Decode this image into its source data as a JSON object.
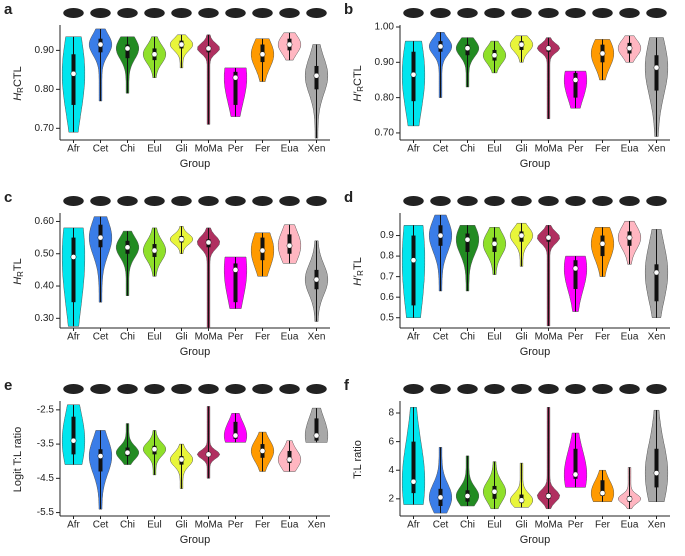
{
  "chart_data": [
    {
      "type": "violin",
      "panel": "a",
      "ylabel": {
        "main": "H",
        "sub": "R",
        "rest": "CTL"
      },
      "xlabel": "Group",
      "categories": [
        "Afr",
        "Cet",
        "Chi",
        "Eul",
        "Gli",
        "MoMa",
        "Per",
        "Fer",
        "Eua",
        "Xen"
      ],
      "colors": [
        "#00e5ee",
        "#3a7de8",
        "#228b22",
        "#8fe02a",
        "#e8f53a",
        "#b03060",
        "#ff00ff",
        "#ff9a00",
        "#ffb6c1",
        "#a8a8a8"
      ],
      "ylim": [
        0.67,
        0.96
      ],
      "yticks": [
        {
          "value": 0.7,
          "label": "0.70"
        },
        {
          "value": 0.8,
          "label": "0.80"
        },
        {
          "value": 0.9,
          "label": "0.90"
        }
      ],
      "stats": [
        {
          "min": 0.69,
          "q1": 0.76,
          "median": 0.84,
          "q3": 0.89,
          "max": 0.935
        },
        {
          "min": 0.77,
          "q1": 0.895,
          "median": 0.915,
          "q3": 0.93,
          "max": 0.955
        },
        {
          "min": 0.79,
          "q1": 0.88,
          "median": 0.905,
          "q3": 0.915,
          "max": 0.935
        },
        {
          "min": 0.83,
          "q1": 0.875,
          "median": 0.89,
          "q3": 0.905,
          "max": 0.935
        },
        {
          "min": 0.855,
          "q1": 0.905,
          "median": 0.915,
          "q3": 0.925,
          "max": 0.94
        },
        {
          "min": 0.71,
          "q1": 0.895,
          "median": 0.905,
          "q3": 0.91,
          "max": 0.94
        },
        {
          "min": 0.73,
          "q1": 0.76,
          "median": 0.83,
          "q3": 0.845,
          "max": 0.855
        },
        {
          "min": 0.82,
          "q1": 0.87,
          "median": 0.89,
          "q3": 0.915,
          "max": 0.93
        },
        {
          "min": 0.875,
          "q1": 0.9,
          "median": 0.915,
          "q3": 0.93,
          "max": 0.945
        },
        {
          "min": 0.675,
          "q1": 0.8,
          "median": 0.835,
          "q3": 0.86,
          "max": 0.915
        }
      ]
    },
    {
      "type": "violin",
      "panel": "b",
      "ylabel": {
        "main": "H′",
        "sub": "R",
        "rest": "CTL"
      },
      "xlabel": "Group",
      "categories": [
        "Afr",
        "Cet",
        "Chi",
        "Eul",
        "Gli",
        "MoMa",
        "Per",
        "Fer",
        "Eua",
        "Xen"
      ],
      "colors": [
        "#00e5ee",
        "#3a7de8",
        "#228b22",
        "#8fe02a",
        "#e8f53a",
        "#b03060",
        "#ff00ff",
        "#ff9a00",
        "#ffb6c1",
        "#a8a8a8"
      ],
      "ylim": [
        0.68,
        1.0
      ],
      "yticks": [
        {
          "value": 0.7,
          "label": "0.70"
        },
        {
          "value": 0.8,
          "label": "0.80"
        },
        {
          "value": 0.9,
          "label": "0.90"
        },
        {
          "value": 1.0,
          "label": "1.00"
        }
      ],
      "stats": [
        {
          "min": 0.72,
          "q1": 0.79,
          "median": 0.865,
          "q3": 0.93,
          "max": 0.96
        },
        {
          "min": 0.8,
          "q1": 0.93,
          "median": 0.945,
          "q3": 0.96,
          "max": 0.985
        },
        {
          "min": 0.83,
          "q1": 0.92,
          "median": 0.94,
          "q3": 0.95,
          "max": 0.97
        },
        {
          "min": 0.87,
          "q1": 0.905,
          "median": 0.92,
          "q3": 0.935,
          "max": 0.96
        },
        {
          "min": 0.9,
          "q1": 0.935,
          "median": 0.95,
          "q3": 0.96,
          "max": 0.975
        },
        {
          "min": 0.74,
          "q1": 0.93,
          "median": 0.94,
          "q3": 0.945,
          "max": 0.97
        },
        {
          "min": 0.77,
          "q1": 0.8,
          "median": 0.85,
          "q3": 0.87,
          "max": 0.875
        },
        {
          "min": 0.85,
          "q1": 0.9,
          "median": 0.925,
          "q3": 0.95,
          "max": 0.965
        },
        {
          "min": 0.9,
          "q1": 0.925,
          "median": 0.94,
          "q3": 0.955,
          "max": 0.975
        },
        {
          "min": 0.69,
          "q1": 0.82,
          "median": 0.885,
          "q3": 0.92,
          "max": 0.97
        }
      ]
    },
    {
      "type": "violin",
      "panel": "c",
      "ylabel": {
        "main": "H",
        "sub": "R",
        "rest": "TL"
      },
      "xlabel": "Group",
      "categories": [
        "Afr",
        "Cet",
        "Chi",
        "Eul",
        "Gli",
        "MoMa",
        "Per",
        "Fer",
        "Eua",
        "Xen"
      ],
      "colors": [
        "#00e5ee",
        "#3a7de8",
        "#228b22",
        "#8fe02a",
        "#e8f53a",
        "#b03060",
        "#ff00ff",
        "#ff9a00",
        "#ffb6c1",
        "#a8a8a8"
      ],
      "ylim": [
        0.27,
        0.62
      ],
      "yticks": [
        {
          "value": 0.3,
          "label": "0.30"
        },
        {
          "value": 0.4,
          "label": "0.40"
        },
        {
          "value": 0.5,
          "label": "0.50"
        },
        {
          "value": 0.6,
          "label": "0.60"
        }
      ],
      "stats": [
        {
          "min": 0.275,
          "q1": 0.35,
          "median": 0.49,
          "q3": 0.55,
          "max": 0.58
        },
        {
          "min": 0.35,
          "q1": 0.52,
          "median": 0.55,
          "q3": 0.59,
          "max": 0.615
        },
        {
          "min": 0.37,
          "q1": 0.5,
          "median": 0.52,
          "q3": 0.54,
          "max": 0.57
        },
        {
          "min": 0.43,
          "q1": 0.49,
          "median": 0.51,
          "q3": 0.53,
          "max": 0.58
        },
        {
          "min": 0.5,
          "q1": 0.535,
          "median": 0.545,
          "q3": 0.555,
          "max": 0.585
        },
        {
          "min": 0.27,
          "q1": 0.52,
          "median": 0.535,
          "q3": 0.545,
          "max": 0.58
        },
        {
          "min": 0.33,
          "q1": 0.35,
          "median": 0.45,
          "q3": 0.47,
          "max": 0.49
        },
        {
          "min": 0.43,
          "q1": 0.48,
          "median": 0.51,
          "q3": 0.55,
          "max": 0.565
        },
        {
          "min": 0.47,
          "q1": 0.5,
          "median": 0.525,
          "q3": 0.56,
          "max": 0.59
        },
        {
          "min": 0.29,
          "q1": 0.39,
          "median": 0.42,
          "q3": 0.45,
          "max": 0.54
        }
      ]
    },
    {
      "type": "violin",
      "panel": "d",
      "ylabel": {
        "main": "H′",
        "sub": "R",
        "rest": "TL"
      },
      "xlabel": "Group",
      "categories": [
        "Afr",
        "Cet",
        "Chi",
        "Eul",
        "Gli",
        "MoMa",
        "Per",
        "Fer",
        "Eua",
        "Xen"
      ],
      "colors": [
        "#00e5ee",
        "#3a7de8",
        "#228b22",
        "#8fe02a",
        "#e8f53a",
        "#b03060",
        "#ff00ff",
        "#ff9a00",
        "#ffb6c1",
        "#a8a8a8"
      ],
      "ylim": [
        0.45,
        1.0
      ],
      "yticks": [
        0.5,
        0.6,
        0.7,
        0.8,
        0.9
      ],
      "stats": [
        {
          "min": 0.5,
          "q1": 0.56,
          "median": 0.78,
          "q3": 0.9,
          "max": 0.95
        },
        {
          "min": 0.63,
          "q1": 0.85,
          "median": 0.9,
          "q3": 0.95,
          "max": 1.0
        },
        {
          "min": 0.63,
          "q1": 0.82,
          "median": 0.88,
          "q3": 0.91,
          "max": 0.95
        },
        {
          "min": 0.71,
          "q1": 0.82,
          "median": 0.86,
          "q3": 0.89,
          "max": 0.94
        },
        {
          "min": 0.75,
          "q1": 0.87,
          "median": 0.9,
          "q3": 0.92,
          "max": 0.96
        },
        {
          "min": 0.46,
          "q1": 0.87,
          "median": 0.89,
          "q3": 0.9,
          "max": 0.95
        },
        {
          "min": 0.53,
          "q1": 0.64,
          "median": 0.74,
          "q3": 0.78,
          "max": 0.8
        },
        {
          "min": 0.7,
          "q1": 0.8,
          "median": 0.86,
          "q3": 0.9,
          "max": 0.94
        },
        {
          "min": 0.76,
          "q1": 0.85,
          "median": 0.89,
          "q3": 0.92,
          "max": 0.97
        },
        {
          "min": 0.5,
          "q1": 0.58,
          "median": 0.72,
          "q3": 0.76,
          "max": 0.93
        }
      ]
    },
    {
      "type": "violin",
      "panel": "e",
      "ylabel": "Logit T:L ratio",
      "xlabel": "Group",
      "categories": [
        "Afr",
        "Cet",
        "Chi",
        "Eul",
        "Gli",
        "MoMa",
        "Per",
        "Fer",
        "Eua",
        "Xen"
      ],
      "colors": [
        "#00e5ee",
        "#3a7de8",
        "#228b22",
        "#8fe02a",
        "#e8f53a",
        "#b03060",
        "#ff00ff",
        "#ff9a00",
        "#ffb6c1",
        "#a8a8a8"
      ],
      "ylim": [
        -5.6,
        -2.3
      ],
      "yticks": [
        -2.5,
        -3.5,
        -4.5,
        -5.5
      ],
      "stats": [
        {
          "min": -4.1,
          "q1": -3.8,
          "median": -3.4,
          "q3": -2.7,
          "max": -2.35
        },
        {
          "min": -5.4,
          "q1": -4.3,
          "median": -3.85,
          "q3": -3.65,
          "max": -3.1
        },
        {
          "min": -4.1,
          "q1": -3.85,
          "median": -3.75,
          "q3": -3.6,
          "max": -2.9
        },
        {
          "min": -4.4,
          "q1": -3.8,
          "median": -3.65,
          "q3": -3.55,
          "max": -3.1
        },
        {
          "min": -4.8,
          "q1": -4.1,
          "median": -3.95,
          "q3": -3.85,
          "max": -3.5
        },
        {
          "min": -4.5,
          "q1": -3.85,
          "median": -3.8,
          "q3": -3.75,
          "max": -2.4
        },
        {
          "min": -3.45,
          "q1": -3.35,
          "median": -3.25,
          "q3": -2.85,
          "max": -2.6
        },
        {
          "min": -4.3,
          "q1": -3.9,
          "median": -3.7,
          "q3": -3.5,
          "max": -3.15
        },
        {
          "min": -4.3,
          "q1": -4.05,
          "median": -3.95,
          "q3": -3.7,
          "max": -3.4
        },
        {
          "min": -3.45,
          "q1": -3.4,
          "median": -3.25,
          "q3": -2.75,
          "max": -2.45
        }
      ]
    },
    {
      "type": "violin",
      "panel": "f",
      "ylabel": "T:L ratio",
      "xlabel": "Group",
      "categories": [
        "Afr",
        "Cet",
        "Chi",
        "Eul",
        "Gli",
        "MoMa",
        "Per",
        "Fer",
        "Eua",
        "Xen"
      ],
      "colors": [
        "#00e5ee",
        "#3a7de8",
        "#228b22",
        "#8fe02a",
        "#e8f53a",
        "#b03060",
        "#ff00ff",
        "#ff9a00",
        "#ffb6c1",
        "#a8a8a8"
      ],
      "ylim": [
        0.8,
        8.7
      ],
      "yticks": [
        2,
        4,
        6,
        8
      ],
      "stats": [
        {
          "min": 1.6,
          "q1": 2.4,
          "median": 3.2,
          "q3": 6,
          "max": 8.4
        },
        {
          "min": 1.0,
          "q1": 1.5,
          "median": 2.1,
          "q3": 2.7,
          "max": 5.6
        },
        {
          "min": 1.5,
          "q1": 1.8,
          "median": 2.2,
          "q3": 2.6,
          "max": 5
        },
        {
          "min": 1.3,
          "q1": 2,
          "median": 2.5,
          "q3": 2.9,
          "max": 4.6
        },
        {
          "min": 1.4,
          "q1": 1.7,
          "median": 1.9,
          "q3": 2.3,
          "max": 4.5
        },
        {
          "min": 1.3,
          "q1": 2,
          "median": 2.2,
          "q3": 2.4,
          "max": 8.4
        },
        {
          "min": 2.8,
          "q1": 3.4,
          "median": 3.7,
          "q3": 5.5,
          "max": 6.6
        },
        {
          "min": 1.8,
          "q1": 2.2,
          "median": 2.4,
          "q3": 3.3,
          "max": 4
        },
        {
          "min": 1.3,
          "q1": 1.8,
          "median": 2.0,
          "q3": 2.2,
          "max": 4.2
        },
        {
          "min": 1.8,
          "q1": 2.8,
          "median": 3.8,
          "q3": 5.5,
          "max": 8.2
        }
      ]
    }
  ]
}
